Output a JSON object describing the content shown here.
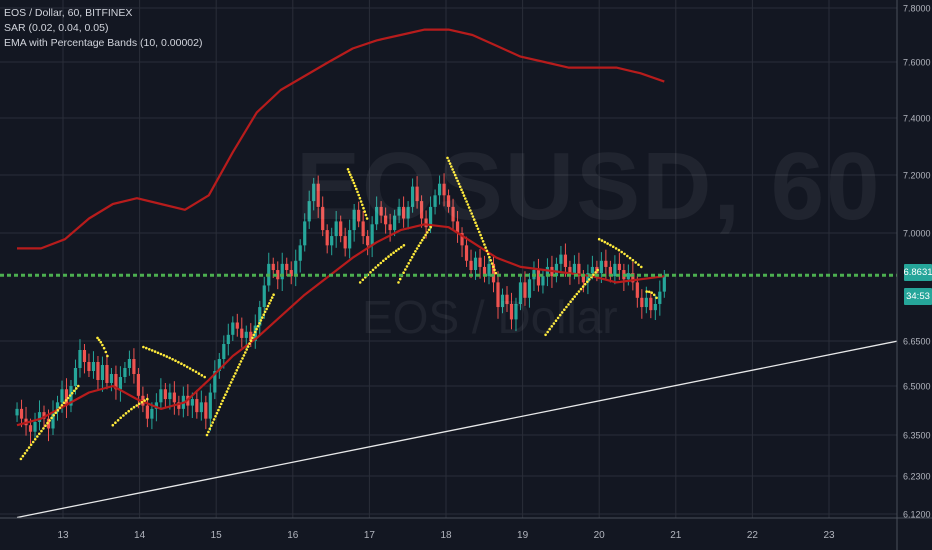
{
  "legend": {
    "symbol": "EOS / Dollar, 60, BITFINEX",
    "sar": "SAR (0.02, 0.04, 0.05)",
    "ema": "EMA with Percentage Bands (10, 0.00002)"
  },
  "watermark": {
    "line1": "EOSUSD, 60",
    "line2": "EOS / Dollar"
  },
  "price_tags": {
    "last": "6.8631",
    "countdown": "34:53"
  },
  "colors": {
    "up": "#26a69a",
    "down": "#ef5350",
    "band": "#b71c1c",
    "sar": "#ffeb3b",
    "hline": "#4caf50",
    "trend": "#ffffff",
    "bg": "#131722",
    "grid": "#2a2e39"
  },
  "chart_data": {
    "type": "candlestick",
    "x_axis": {
      "ticks": [
        "13",
        "14",
        "15",
        "16",
        "17",
        "18",
        "19",
        "20",
        "21",
        "22",
        "23"
      ]
    },
    "y_axis": {
      "ticks": [
        "6.1200",
        "6.2300",
        "6.3500",
        "6.5000",
        "6.6500",
        "7.0000",
        "7.2000",
        "7.4000",
        "7.6000",
        "7.8000"
      ]
    },
    "ylim": [
      6.11,
      7.81
    ],
    "last_price": 6.8631,
    "horizontal_line": 6.863,
    "trendline": {
      "x": [
        12.4,
        23.9
      ],
      "y": [
        6.11,
        6.65
      ]
    },
    "candles_close": [
      6.43,
      6.4,
      6.38,
      6.36,
      6.39,
      6.42,
      6.4,
      6.37,
      6.42,
      6.45,
      6.49,
      6.44,
      6.5,
      6.56,
      6.62,
      6.58,
      6.55,
      6.58,
      6.52,
      6.57,
      6.51,
      6.54,
      6.49,
      6.53,
      6.56,
      6.59,
      6.54,
      6.47,
      6.44,
      6.4,
      6.43,
      6.45,
      6.49,
      6.46,
      6.48,
      6.45,
      6.43,
      6.47,
      6.44,
      6.46,
      6.42,
      6.45,
      6.4,
      6.48,
      6.55,
      6.59,
      6.64,
      6.67,
      6.71,
      6.69,
      6.66,
      6.68,
      6.65,
      6.7,
      6.76,
      6.83,
      6.9,
      6.88,
      6.85,
      6.9,
      6.88,
      6.86,
      6.91,
      6.96,
      7.04,
      7.11,
      7.17,
      7.09,
      7.01,
      6.96,
      6.99,
      7.04,
      6.99,
      6.95,
      7.01,
      7.08,
      7.04,
      6.99,
      6.96,
      7.03,
      7.09,
      7.06,
      7.03,
      7.01,
      7.06,
      7.09,
      7.05,
      7.09,
      7.16,
      7.11,
      7.05,
      7.02,
      7.09,
      7.13,
      7.17,
      7.13,
      7.09,
      7.04,
      7.0,
      6.96,
      6.91,
      6.88,
      6.92,
      6.89,
      6.86,
      6.9,
      6.84,
      6.76,
      6.8,
      6.77,
      6.72,
      6.77,
      6.84,
      6.79,
      6.85,
      6.88,
      6.83,
      6.86,
      6.89,
      6.86,
      6.9,
      6.93,
      6.89,
      6.87,
      6.9,
      6.86,
      6.84,
      6.87,
      6.89,
      6.87,
      6.91,
      6.89,
      6.86,
      6.9,
      6.88,
      6.85,
      6.87,
      6.84,
      6.79,
      6.76,
      6.79,
      6.75,
      6.77,
      6.81,
      6.86
    ],
    "ema_upper_band": [
      6.95,
      6.95,
      6.98,
      7.05,
      7.1,
      7.12,
      7.1,
      7.08,
      7.13,
      7.28,
      7.42,
      7.5,
      7.55,
      7.6,
      7.65,
      7.68,
      7.7,
      7.72,
      7.72,
      7.7,
      7.66,
      7.62,
      7.6,
      7.58,
      7.58,
      7.58,
      7.56,
      7.53
    ],
    "ema_lower_band": [
      6.38,
      6.4,
      6.44,
      6.48,
      6.5,
      6.46,
      6.43,
      6.45,
      6.52,
      6.6,
      6.66,
      6.73,
      6.8,
      6.86,
      6.92,
      6.97,
      7.01,
      7.03,
      7.02,
      6.97,
      6.92,
      6.89,
      6.88,
      6.87,
      6.86,
      6.84,
      6.85,
      6.86
    ],
    "sar_segments": [
      {
        "x": [
          12.45,
          13.2
        ],
        "y": [
          6.28,
          6.5
        ]
      },
      {
        "x": [
          13.45,
          13.58
        ],
        "y": [
          6.66,
          6.6
        ]
      },
      {
        "x": [
          13.65,
          14.1
        ],
        "y": [
          6.38,
          6.46
        ]
      },
      {
        "x": [
          14.05,
          14.85
        ],
        "y": [
          6.63,
          6.53
        ]
      },
      {
        "x": [
          14.88,
          15.75
        ],
        "y": [
          6.35,
          6.8
        ]
      },
      {
        "x": [
          16.72,
          16.97
        ],
        "y": [
          7.22,
          7.05
        ]
      },
      {
        "x": [
          16.88,
          17.45
        ],
        "y": [
          6.84,
          6.96
        ]
      },
      {
        "x": [
          17.38,
          17.8
        ],
        "y": [
          6.84,
          7.02
        ]
      },
      {
        "x": [
          18.02,
          18.65
        ],
        "y": [
          7.26,
          6.87
        ]
      },
      {
        "x": [
          19.3,
          19.98
        ],
        "y": [
          6.67,
          6.88
        ]
      },
      {
        "x": [
          20.0,
          20.55
        ],
        "y": [
          6.98,
          6.89
        ]
      },
      {
        "x": [
          20.62,
          20.75
        ],
        "y": [
          6.81,
          6.79
        ]
      }
    ]
  }
}
